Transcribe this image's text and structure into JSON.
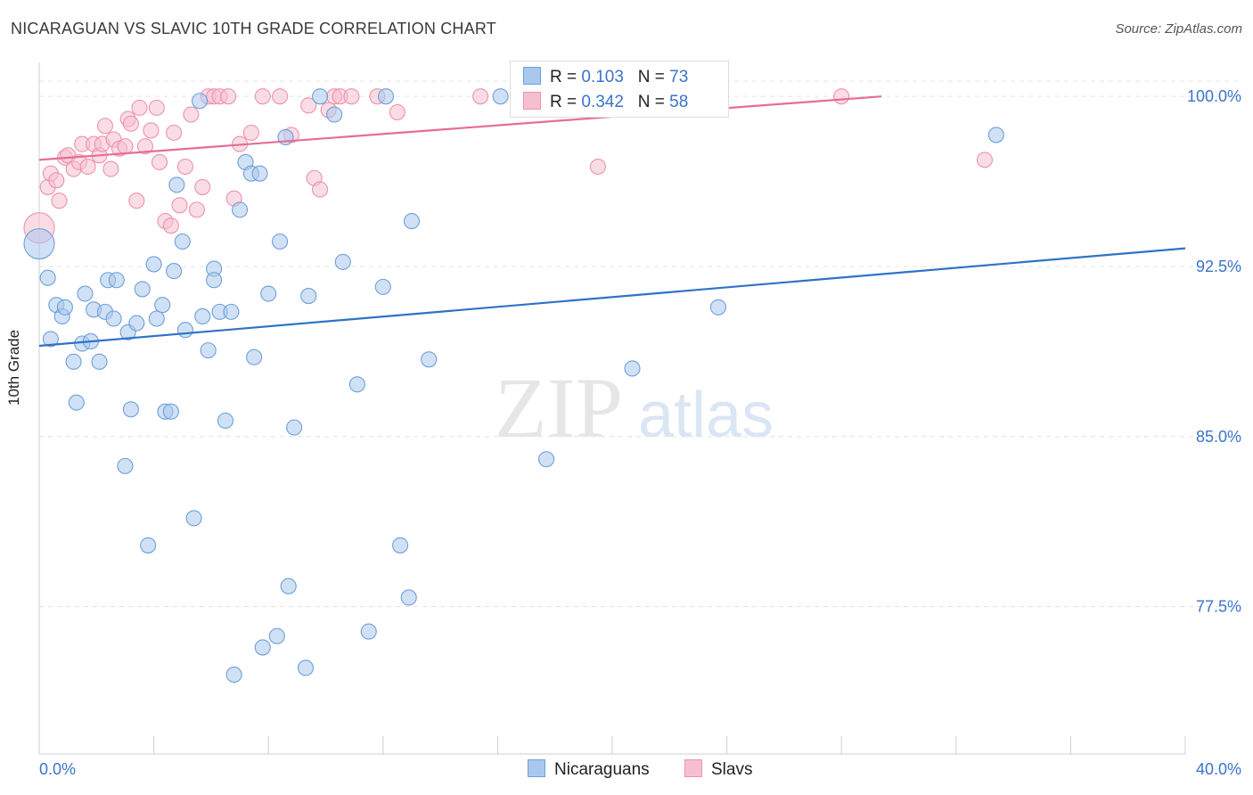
{
  "header": {
    "title": "NICARAGUAN VS SLAVIC 10TH GRADE CORRELATION CHART",
    "source": "Source: ZipAtlas.com"
  },
  "watermark": {
    "zip": "ZIP",
    "atlas": "atlas"
  },
  "legend_box": {
    "row1": {
      "r_label": "R =",
      "r_value": "0.103",
      "n_label": "N =",
      "n_value": "73"
    },
    "row2": {
      "r_label": "R =",
      "r_value": "0.342",
      "n_label": "N =",
      "n_value": "58"
    }
  },
  "bottom_legend": {
    "series1": "Nicaraguans",
    "series2": "Slavs"
  },
  "colors": {
    "blue_fill": "#a9c8ee",
    "blue_stroke": "#6f9fd8",
    "blue_line": "#2f72c8",
    "pink_fill": "#f6bfd0",
    "pink_stroke": "#ec93ae",
    "pink_line": "#e56d95",
    "tick_text": "#3a74c9",
    "grid": "#e3e3e3"
  },
  "chart_data": {
    "type": "scatter",
    "title": "NICARAGUAN VS SLAVIC 10TH GRADE CORRELATION CHART",
    "xlabel": "",
    "ylabel": "10th Grade",
    "xlim": [
      0,
      40
    ],
    "ylim": [
      71,
      101.5
    ],
    "x_tick_labels": [
      "0.0%",
      "40.0%"
    ],
    "y_ticks": [
      77.5,
      85.0,
      92.5,
      100.0
    ],
    "y_tick_labels": [
      "77.5%",
      "85.0%",
      "92.5%",
      "100.0%"
    ],
    "grid": "horizontal dashed",
    "legend_position": "top-center",
    "series": [
      {
        "name": "Nicaraguans",
        "R": 0.103,
        "N": 73,
        "trend": {
          "x": [
            0,
            40
          ],
          "y": [
            89.0,
            93.3
          ]
        },
        "points": [
          [
            0.0,
            93.5
          ],
          [
            0.3,
            92.0
          ],
          [
            0.4,
            89.3
          ],
          [
            0.6,
            90.8
          ],
          [
            0.8,
            90.3
          ],
          [
            0.9,
            90.7
          ],
          [
            1.2,
            88.3
          ],
          [
            1.3,
            86.5
          ],
          [
            1.5,
            89.1
          ],
          [
            1.6,
            91.3
          ],
          [
            1.8,
            89.2
          ],
          [
            1.9,
            90.6
          ],
          [
            2.1,
            88.3
          ],
          [
            2.3,
            90.5
          ],
          [
            2.4,
            91.9
          ],
          [
            2.6,
            90.2
          ],
          [
            2.7,
            91.9
          ],
          [
            3.0,
            83.7
          ],
          [
            3.1,
            89.6
          ],
          [
            3.2,
            86.2
          ],
          [
            3.4,
            90.0
          ],
          [
            3.6,
            91.5
          ],
          [
            3.8,
            80.2
          ],
          [
            4.0,
            92.6
          ],
          [
            4.1,
            90.2
          ],
          [
            4.3,
            90.8
          ],
          [
            4.4,
            86.1
          ],
          [
            4.6,
            86.1
          ],
          [
            4.7,
            92.3
          ],
          [
            4.8,
            96.1
          ],
          [
            5.1,
            89.7
          ],
          [
            5.0,
            93.6
          ],
          [
            5.4,
            81.4
          ],
          [
            5.6,
            99.8
          ],
          [
            5.7,
            90.3
          ],
          [
            5.9,
            88.8
          ],
          [
            6.1,
            92.4
          ],
          [
            6.1,
            91.9
          ],
          [
            6.3,
            90.5
          ],
          [
            6.5,
            85.7
          ],
          [
            6.7,
            90.5
          ],
          [
            6.8,
            74.5
          ],
          [
            7.0,
            95.0
          ],
          [
            7.2,
            97.1
          ],
          [
            7.4,
            96.6
          ],
          [
            7.5,
            88.5
          ],
          [
            7.7,
            96.6
          ],
          [
            7.8,
            75.7
          ],
          [
            8.0,
            91.3
          ],
          [
            8.3,
            76.2
          ],
          [
            8.4,
            93.6
          ],
          [
            8.6,
            98.2
          ],
          [
            8.7,
            78.4
          ],
          [
            8.9,
            85.4
          ],
          [
            9.3,
            74.8
          ],
          [
            9.4,
            91.2
          ],
          [
            9.8,
            100.0
          ],
          [
            10.3,
            99.2
          ],
          [
            10.6,
            92.7
          ],
          [
            11.1,
            87.3
          ],
          [
            11.5,
            76.4
          ],
          [
            12.0,
            91.6
          ],
          [
            12.1,
            100.0
          ],
          [
            12.6,
            80.2
          ],
          [
            12.9,
            77.9
          ],
          [
            13.0,
            94.5
          ],
          [
            13.6,
            88.4
          ],
          [
            16.1,
            100.0
          ],
          [
            17.7,
            84.0
          ],
          [
            19.1,
            100.0
          ],
          [
            20.7,
            88.0
          ],
          [
            23.7,
            90.7
          ],
          [
            33.4,
            98.3
          ]
        ]
      },
      {
        "name": "Slavs",
        "R": 0.342,
        "N": 58,
        "trend": {
          "x": [
            0,
            29.4
          ],
          "y": [
            97.2,
            100.0
          ]
        },
        "points": [
          [
            0.0,
            94.2
          ],
          [
            0.3,
            96.0
          ],
          [
            0.4,
            96.6
          ],
          [
            0.6,
            96.3
          ],
          [
            0.7,
            95.4
          ],
          [
            0.9,
            97.3
          ],
          [
            1.0,
            97.4
          ],
          [
            1.2,
            96.8
          ],
          [
            1.4,
            97.1
          ],
          [
            1.5,
            97.9
          ],
          [
            1.7,
            96.9
          ],
          [
            1.9,
            97.9
          ],
          [
            2.1,
            97.4
          ],
          [
            2.2,
            97.9
          ],
          [
            2.3,
            98.7
          ],
          [
            2.5,
            96.8
          ],
          [
            2.6,
            98.1
          ],
          [
            2.8,
            97.7
          ],
          [
            3.0,
            97.8
          ],
          [
            3.1,
            99.0
          ],
          [
            3.2,
            98.8
          ],
          [
            3.4,
            95.4
          ],
          [
            3.5,
            99.5
          ],
          [
            3.7,
            97.8
          ],
          [
            3.9,
            98.5
          ],
          [
            4.1,
            99.5
          ],
          [
            4.2,
            97.1
          ],
          [
            4.4,
            94.5
          ],
          [
            4.6,
            94.3
          ],
          [
            4.7,
            98.4
          ],
          [
            4.9,
            95.2
          ],
          [
            5.1,
            96.9
          ],
          [
            5.3,
            99.2
          ],
          [
            5.5,
            95.0
          ],
          [
            5.7,
            96.0
          ],
          [
            5.9,
            100.0
          ],
          [
            6.1,
            100.0
          ],
          [
            6.3,
            100.0
          ],
          [
            6.6,
            100.0
          ],
          [
            6.8,
            95.5
          ],
          [
            7.0,
            97.9
          ],
          [
            7.4,
            98.4
          ],
          [
            7.8,
            100.0
          ],
          [
            8.4,
            100.0
          ],
          [
            8.8,
            98.3
          ],
          [
            9.4,
            99.6
          ],
          [
            9.6,
            96.4
          ],
          [
            9.8,
            95.9
          ],
          [
            10.1,
            99.4
          ],
          [
            10.3,
            100.0
          ],
          [
            10.5,
            100.0
          ],
          [
            10.9,
            100.0
          ],
          [
            11.8,
            100.0
          ],
          [
            12.5,
            99.3
          ],
          [
            15.4,
            100.0
          ],
          [
            19.5,
            96.9
          ],
          [
            28.0,
            100.0
          ],
          [
            33.0,
            97.2
          ]
        ]
      }
    ]
  }
}
